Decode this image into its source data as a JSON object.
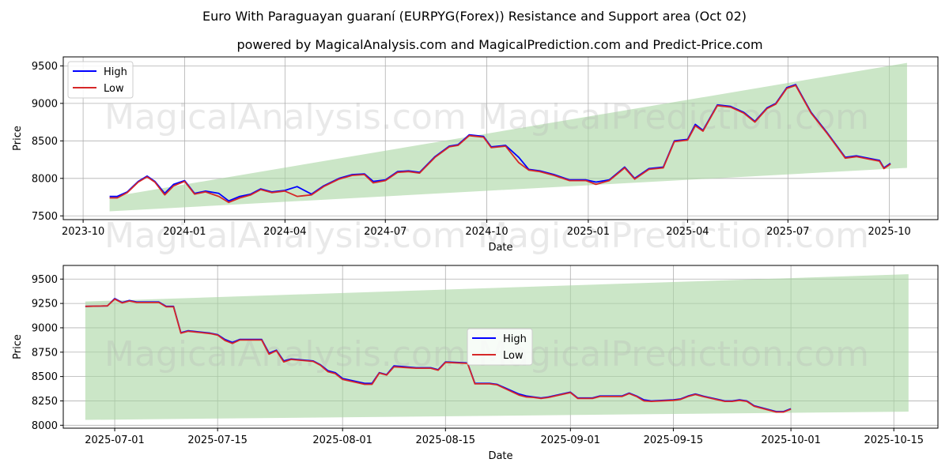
{
  "title": "Euro With Paraguayan guaraní (EURPYG(Forex)) Resistance and Support area (Oct 02)",
  "subtitle": "powered by MagicalAnalysis.com and MagicalPrediction.com and Predict-Price.com",
  "watermarks": [
    "MagicalAnalysis.com",
    "MagicalPrediction.com"
  ],
  "colors": {
    "high": "#0000ff",
    "low": "#d62728",
    "band": "#a8d5a2",
    "grid": "#b0b0b0"
  },
  "chart_data": [
    {
      "type": "line",
      "xlabel": "Date",
      "ylabel": "Price",
      "xlim": [
        "2023-09-13",
        "2025-11-14"
      ],
      "ylim": [
        7450,
        9620
      ],
      "x_ticks": [
        "2023-10",
        "2024-01",
        "2024-04",
        "2024-07",
        "2024-10",
        "2025-01",
        "2025-04",
        "2025-07",
        "2025-10"
      ],
      "y_ticks": [
        7500,
        8000,
        8500,
        9000,
        9500
      ],
      "grid": true,
      "legend": {
        "position": "top-left",
        "entries": [
          "High",
          "Low"
        ]
      },
      "band": {
        "x": [
          "2023-10-25",
          "2025-10-17"
        ],
        "upper": [
          7750,
          9540
        ],
        "lower": [
          7560,
          8140
        ]
      },
      "series": [
        {
          "name": "High",
          "x": [
            "2023-10-25",
            "2023-11-01",
            "2023-11-10",
            "2023-11-20",
            "2023-11-28",
            "2023-12-05",
            "2023-12-14",
            "2023-12-22",
            "2024-01-01",
            "2024-01-10",
            "2024-01-20",
            "2024-02-01",
            "2024-02-10",
            "2024-02-20",
            "2024-03-01",
            "2024-03-10",
            "2024-03-20",
            "2024-04-01",
            "2024-04-12",
            "2024-04-25",
            "2024-05-06",
            "2024-05-20",
            "2024-06-01",
            "2024-06-12",
            "2024-06-20",
            "2024-07-01",
            "2024-07-12",
            "2024-07-22",
            "2024-08-01",
            "2024-08-15",
            "2024-08-28",
            "2024-09-05",
            "2024-09-15",
            "2024-09-28",
            "2024-10-05",
            "2024-10-18",
            "2024-10-30",
            "2024-11-08",
            "2024-11-18",
            "2024-12-01",
            "2024-12-15",
            "2024-12-30",
            "2025-01-08",
            "2025-01-20",
            "2025-02-03",
            "2025-02-12",
            "2025-02-25",
            "2025-03-10",
            "2025-03-20",
            "2025-04-01",
            "2025-04-08",
            "2025-04-15",
            "2025-04-28",
            "2025-05-10",
            "2025-05-22",
            "2025-06-01",
            "2025-06-12",
            "2025-06-20",
            "2025-06-30",
            "2025-07-08",
            "2025-07-22",
            "2025-08-05",
            "2025-08-14",
            "2025-08-22",
            "2025-09-01",
            "2025-09-15",
            "2025-09-22",
            "2025-09-26",
            "2025-10-02"
          ],
          "values": [
            7760,
            7760,
            7820,
            7960,
            8030,
            7960,
            7800,
            7920,
            7970,
            7800,
            7830,
            7800,
            7700,
            7760,
            7790,
            7860,
            7820,
            7840,
            7890,
            7790,
            7900,
            8000,
            8050,
            8060,
            7960,
            7980,
            8090,
            8100,
            8080,
            8290,
            8430,
            8450,
            8580,
            8560,
            8420,
            8440,
            8280,
            8120,
            8100,
            8050,
            7980,
            7980,
            7950,
            7980,
            8150,
            8000,
            8130,
            8150,
            8500,
            8520,
            8720,
            8640,
            8980,
            8960,
            8880,
            8760,
            8940,
            9000,
            9210,
            9250,
            8880,
            8620,
            8440,
            8280,
            8300,
            8260,
            8240,
            8140,
            8200
          ]
        },
        {
          "name": "Low",
          "x": [
            "2023-10-25",
            "2023-11-01",
            "2023-11-10",
            "2023-11-20",
            "2023-11-28",
            "2023-12-05",
            "2023-12-14",
            "2023-12-22",
            "2024-01-01",
            "2024-01-10",
            "2024-01-20",
            "2024-02-01",
            "2024-02-10",
            "2024-02-20",
            "2024-03-01",
            "2024-03-10",
            "2024-03-20",
            "2024-04-01",
            "2024-04-12",
            "2024-04-25",
            "2024-05-06",
            "2024-05-20",
            "2024-06-01",
            "2024-06-12",
            "2024-06-20",
            "2024-07-01",
            "2024-07-12",
            "2024-07-22",
            "2024-08-01",
            "2024-08-15",
            "2024-08-28",
            "2024-09-05",
            "2024-09-15",
            "2024-09-28",
            "2024-10-05",
            "2024-10-18",
            "2024-10-30",
            "2024-11-08",
            "2024-11-18",
            "2024-12-01",
            "2024-12-15",
            "2024-12-30",
            "2025-01-08",
            "2025-01-20",
            "2025-02-03",
            "2025-02-12",
            "2025-02-25",
            "2025-03-10",
            "2025-03-20",
            "2025-04-01",
            "2025-04-08",
            "2025-04-15",
            "2025-04-28",
            "2025-05-10",
            "2025-05-22",
            "2025-06-01",
            "2025-06-12",
            "2025-06-20",
            "2025-06-30",
            "2025-07-08",
            "2025-07-22",
            "2025-08-05",
            "2025-08-14",
            "2025-08-22",
            "2025-09-01",
            "2025-09-15",
            "2025-09-22",
            "2025-09-26",
            "2025-10-02"
          ],
          "values": [
            7740,
            7740,
            7810,
            7950,
            8020,
            7950,
            7780,
            7900,
            7960,
            7790,
            7820,
            7760,
            7680,
            7740,
            7780,
            7850,
            7810,
            7830,
            7760,
            7780,
            7890,
            7990,
            8040,
            8050,
            7940,
            7970,
            8080,
            8090,
            8070,
            8280,
            8420,
            8440,
            8570,
            8550,
            8410,
            8430,
            8210,
            8110,
            8090,
            8040,
            7970,
            7970,
            7920,
            7970,
            8140,
            7990,
            8120,
            8140,
            8490,
            8510,
            8700,
            8630,
            8970,
            8950,
            8870,
            8750,
            8930,
            8990,
            9200,
            9240,
            8870,
            8610,
            8430,
            8270,
            8290,
            8250,
            8230,
            8130,
            8190
          ]
        }
      ]
    },
    {
      "type": "line",
      "xlabel": "Date",
      "ylabel": "Price",
      "xlim": [
        "2025-06-24",
        "2025-10-21"
      ],
      "ylim": [
        7970,
        9640
      ],
      "x_ticks": [
        "2025-07-01",
        "2025-07-15",
        "2025-08-01",
        "2025-08-15",
        "2025-09-01",
        "2025-09-15",
        "2025-10-01",
        "2025-10-15"
      ],
      "y_ticks": [
        8000,
        8250,
        8500,
        8750,
        9000,
        9250,
        9500
      ],
      "grid": true,
      "legend": {
        "position": "center",
        "entries": [
          "High",
          "Low"
        ]
      },
      "band": {
        "x": [
          "2025-06-27",
          "2025-10-17"
        ],
        "upper": [
          9270,
          9550
        ],
        "lower": [
          8055,
          8140
        ]
      },
      "series": [
        {
          "name": "High",
          "x": [
            "2025-06-27",
            "2025-06-30",
            "2025-07-01",
            "2025-07-02",
            "2025-07-03",
            "2025-07-04",
            "2025-07-07",
            "2025-07-08",
            "2025-07-09",
            "2025-07-10",
            "2025-07-11",
            "2025-07-14",
            "2025-07-15",
            "2025-07-16",
            "2025-07-17",
            "2025-07-18",
            "2025-07-21",
            "2025-07-22",
            "2025-07-23",
            "2025-07-24",
            "2025-07-25",
            "2025-07-28",
            "2025-07-29",
            "2025-07-30",
            "2025-07-31",
            "2025-08-01",
            "2025-08-04",
            "2025-08-05",
            "2025-08-06",
            "2025-08-07",
            "2025-08-08",
            "2025-08-11",
            "2025-08-12",
            "2025-08-13",
            "2025-08-14",
            "2025-08-15",
            "2025-08-18",
            "2025-08-19",
            "2025-08-20",
            "2025-08-21",
            "2025-08-22",
            "2025-08-25",
            "2025-08-26",
            "2025-08-27",
            "2025-08-28",
            "2025-08-29",
            "2025-09-01",
            "2025-09-02",
            "2025-09-03",
            "2025-09-04",
            "2025-09-05",
            "2025-09-08",
            "2025-09-09",
            "2025-09-10",
            "2025-09-11",
            "2025-09-12",
            "2025-09-15",
            "2025-09-16",
            "2025-09-17",
            "2025-09-18",
            "2025-09-19",
            "2025-09-22",
            "2025-09-23",
            "2025-09-24",
            "2025-09-25",
            "2025-09-26",
            "2025-09-29",
            "2025-09-30",
            "2025-10-01"
          ],
          "values": [
            9220,
            9225,
            9300,
            9260,
            9280,
            9265,
            9265,
            9220,
            9220,
            8950,
            8970,
            8945,
            8930,
            8880,
            8850,
            8880,
            8880,
            8740,
            8770,
            8660,
            8680,
            8660,
            8620,
            8560,
            8540,
            8480,
            8430,
            8430,
            8540,
            8520,
            8610,
            8590,
            8590,
            8590,
            8570,
            8650,
            8640,
            8430,
            8430,
            8430,
            8420,
            8320,
            8300,
            8290,
            8280,
            8290,
            8340,
            8280,
            8280,
            8280,
            8300,
            8300,
            8330,
            8300,
            8260,
            8250,
            8260,
            8270,
            8300,
            8320,
            8300,
            8250,
            8250,
            8260,
            8250,
            8200,
            8140,
            8140,
            8170
          ]
        },
        {
          "name": "Low",
          "x": [
            "2025-06-27",
            "2025-06-30",
            "2025-07-01",
            "2025-07-02",
            "2025-07-03",
            "2025-07-04",
            "2025-07-07",
            "2025-07-08",
            "2025-07-09",
            "2025-07-10",
            "2025-07-11",
            "2025-07-14",
            "2025-07-15",
            "2025-07-16",
            "2025-07-17",
            "2025-07-18",
            "2025-07-21",
            "2025-07-22",
            "2025-07-23",
            "2025-07-24",
            "2025-07-25",
            "2025-07-28",
            "2025-07-29",
            "2025-07-30",
            "2025-07-31",
            "2025-08-01",
            "2025-08-04",
            "2025-08-05",
            "2025-08-06",
            "2025-08-07",
            "2025-08-08",
            "2025-08-11",
            "2025-08-12",
            "2025-08-13",
            "2025-08-14",
            "2025-08-15",
            "2025-08-18",
            "2025-08-19",
            "2025-08-20",
            "2025-08-21",
            "2025-08-22",
            "2025-08-25",
            "2025-08-26",
            "2025-08-27",
            "2025-08-28",
            "2025-08-29",
            "2025-09-01",
            "2025-09-02",
            "2025-09-03",
            "2025-09-04",
            "2025-09-05",
            "2025-09-08",
            "2025-09-09",
            "2025-09-10",
            "2025-09-11",
            "2025-09-12",
            "2025-09-15",
            "2025-09-16",
            "2025-09-17",
            "2025-09-18",
            "2025-09-19",
            "2025-09-22",
            "2025-09-23",
            "2025-09-24",
            "2025-09-25",
            "2025-09-26",
            "2025-09-29",
            "2025-09-30",
            "2025-10-01"
          ],
          "values": [
            9220,
            9225,
            9295,
            9255,
            9275,
            9260,
            9260,
            9215,
            9215,
            8945,
            8965,
            8940,
            8925,
            8870,
            8840,
            8875,
            8875,
            8730,
            8765,
            8650,
            8675,
            8655,
            8615,
            8550,
            8530,
            8470,
            8420,
            8420,
            8535,
            8515,
            8600,
            8585,
            8585,
            8585,
            8565,
            8645,
            8635,
            8425,
            8425,
            8425,
            8415,
            8310,
            8290,
            8285,
            8275,
            8285,
            8335,
            8275,
            8275,
            8275,
            8295,
            8295,
            8325,
            8295,
            8250,
            8245,
            8255,
            8265,
            8295,
            8315,
            8295,
            8245,
            8245,
            8255,
            8245,
            8195,
            8135,
            8135,
            8165
          ]
        }
      ]
    }
  ]
}
